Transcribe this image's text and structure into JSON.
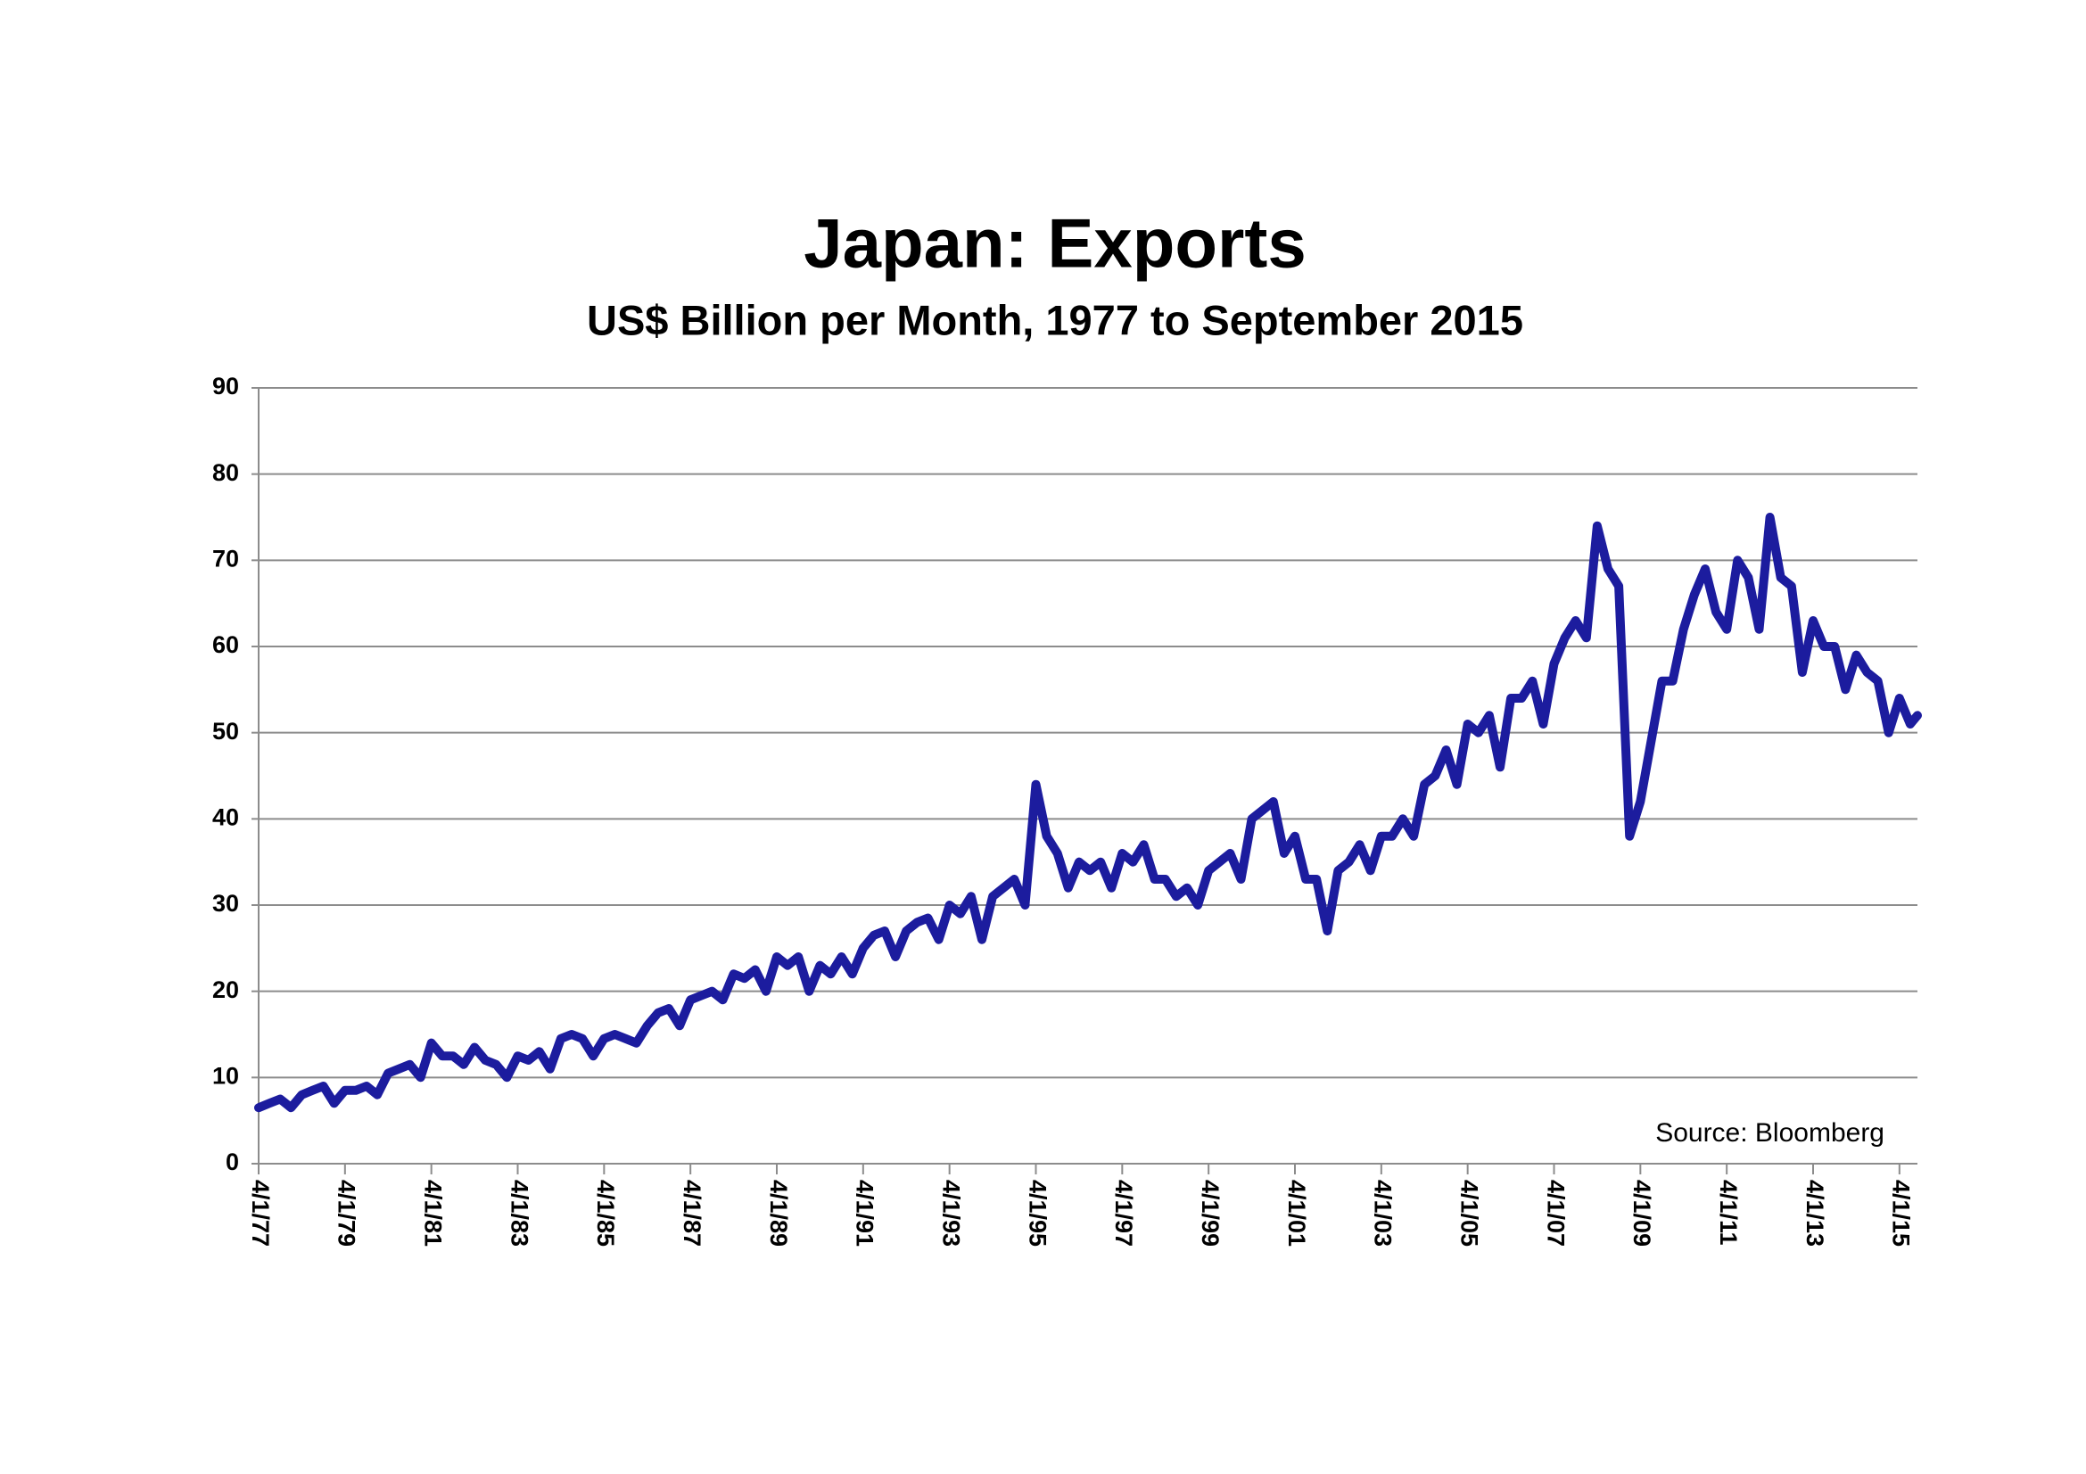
{
  "chart_data": {
    "type": "line",
    "title": "Japan: Exports",
    "subtitle": "US$ Billion per Month, 1977 to September 2015",
    "annotation": "Source: Bloomberg",
    "x": [
      "1977-04",
      "1977-07",
      "1977-10",
      "1978-01",
      "1978-04",
      "1978-07",
      "1978-10",
      "1979-01",
      "1979-04",
      "1979-07",
      "1979-10",
      "1980-01",
      "1980-04",
      "1980-07",
      "1980-10",
      "1981-01",
      "1981-04",
      "1981-07",
      "1981-10",
      "1982-01",
      "1982-04",
      "1982-07",
      "1982-10",
      "1983-01",
      "1983-04",
      "1983-07",
      "1983-10",
      "1984-01",
      "1984-04",
      "1984-07",
      "1984-10",
      "1985-01",
      "1985-04",
      "1985-07",
      "1985-10",
      "1986-01",
      "1986-04",
      "1986-07",
      "1986-10",
      "1987-01",
      "1987-04",
      "1987-07",
      "1987-10",
      "1988-01",
      "1988-04",
      "1988-07",
      "1988-10",
      "1989-01",
      "1989-04",
      "1989-07",
      "1989-10",
      "1990-01",
      "1990-04",
      "1990-07",
      "1990-10",
      "1991-01",
      "1991-04",
      "1991-07",
      "1991-10",
      "1992-01",
      "1992-04",
      "1992-07",
      "1992-10",
      "1993-01",
      "1993-04",
      "1993-07",
      "1993-10",
      "1994-01",
      "1994-04",
      "1994-07",
      "1994-10",
      "1995-01",
      "1995-04",
      "1995-07",
      "1995-10",
      "1996-01",
      "1996-04",
      "1996-07",
      "1996-10",
      "1997-01",
      "1997-04",
      "1997-07",
      "1997-10",
      "1998-01",
      "1998-04",
      "1998-07",
      "1998-10",
      "1999-01",
      "1999-04",
      "1999-07",
      "1999-10",
      "2000-01",
      "2000-04",
      "2000-07",
      "2000-10",
      "2001-01",
      "2001-04",
      "2001-07",
      "2001-10",
      "2002-01",
      "2002-04",
      "2002-07",
      "2002-10",
      "2003-01",
      "2003-04",
      "2003-07",
      "2003-10",
      "2004-01",
      "2004-04",
      "2004-07",
      "2004-10",
      "2005-01",
      "2005-04",
      "2005-07",
      "2005-10",
      "2006-01",
      "2006-04",
      "2006-07",
      "2006-10",
      "2007-01",
      "2007-04",
      "2007-07",
      "2007-10",
      "2008-01",
      "2008-04",
      "2008-07",
      "2008-10",
      "2009-01",
      "2009-04",
      "2009-07",
      "2009-10",
      "2010-01",
      "2010-04",
      "2010-07",
      "2010-10",
      "2011-01",
      "2011-04",
      "2011-07",
      "2011-10",
      "2012-01",
      "2012-04",
      "2012-07",
      "2012-10",
      "2013-01",
      "2013-04",
      "2013-07",
      "2013-10",
      "2014-01",
      "2014-04",
      "2014-07",
      "2014-10",
      "2015-01",
      "2015-04",
      "2015-07",
      "2015-09"
    ],
    "series": [
      {
        "name": "Exports",
        "color": "#1c1c9e",
        "values": [
          6.5,
          7,
          7.5,
          6.5,
          8,
          8.5,
          9,
          7,
          8.5,
          8.5,
          9,
          8,
          10.5,
          11,
          11.5,
          10,
          14,
          12.5,
          12.5,
          11.5,
          13.5,
          12,
          11.5,
          10,
          12.5,
          12,
          13,
          11,
          14.5,
          15,
          14.5,
          12.5,
          14.5,
          15,
          14.5,
          14,
          16,
          17.5,
          18,
          16,
          19,
          19.5,
          20,
          19,
          22,
          21.5,
          22.5,
          20,
          24,
          23,
          24,
          20,
          23,
          22,
          24,
          22,
          25,
          26.5,
          27,
          24,
          27,
          28,
          28.5,
          26,
          30,
          29,
          31,
          26,
          31,
          32,
          33,
          30,
          44,
          38,
          36,
          32,
          35,
          34,
          35,
          32,
          36,
          35,
          37,
          33,
          33,
          31,
          32,
          30,
          34,
          35,
          36,
          33,
          40,
          41,
          42,
          36,
          38,
          33,
          33,
          27,
          34,
          35,
          37,
          34,
          38,
          38,
          40,
          38,
          44,
          45,
          48,
          44,
          51,
          50,
          52,
          46,
          54,
          54,
          56,
          51,
          58,
          61,
          63,
          61,
          74,
          69,
          67,
          38,
          42,
          49,
          56,
          56,
          62,
          66,
          69,
          64,
          62,
          70,
          68,
          62,
          75,
          68,
          67,
          57,
          63,
          60,
          60,
          55,
          59,
          57,
          56,
          50,
          54,
          51,
          52
        ]
      }
    ],
    "xlim": [
      "1977-04",
      "2015-09"
    ],
    "xticks": [
      {
        "value": "1977-04",
        "label": "4/1/77"
      },
      {
        "value": "1979-04",
        "label": "4/1/79"
      },
      {
        "value": "1981-04",
        "label": "4/1/81"
      },
      {
        "value": "1983-04",
        "label": "4/1/83"
      },
      {
        "value": "1985-04",
        "label": "4/1/85"
      },
      {
        "value": "1987-04",
        "label": "4/1/87"
      },
      {
        "value": "1989-04",
        "label": "4/1/89"
      },
      {
        "value": "1991-04",
        "label": "4/1/91"
      },
      {
        "value": "1993-04",
        "label": "4/1/93"
      },
      {
        "value": "1995-04",
        "label": "4/1/95"
      },
      {
        "value": "1997-04",
        "label": "4/1/97"
      },
      {
        "value": "1999-04",
        "label": "4/1/99"
      },
      {
        "value": "2001-04",
        "label": "4/1/01"
      },
      {
        "value": "2003-04",
        "label": "4/1/03"
      },
      {
        "value": "2005-04",
        "label": "4/1/05"
      },
      {
        "value": "2007-04",
        "label": "4/1/07"
      },
      {
        "value": "2009-04",
        "label": "4/1/09"
      },
      {
        "value": "2011-04",
        "label": "4/1/11"
      },
      {
        "value": "2013-04",
        "label": "4/1/13"
      },
      {
        "value": "2015-04",
        "label": "4/1/15"
      }
    ],
    "ylim": [
      0,
      90
    ],
    "yticks": [
      0,
      10,
      20,
      30,
      40,
      50,
      60,
      70,
      80,
      90
    ],
    "grid": true
  }
}
